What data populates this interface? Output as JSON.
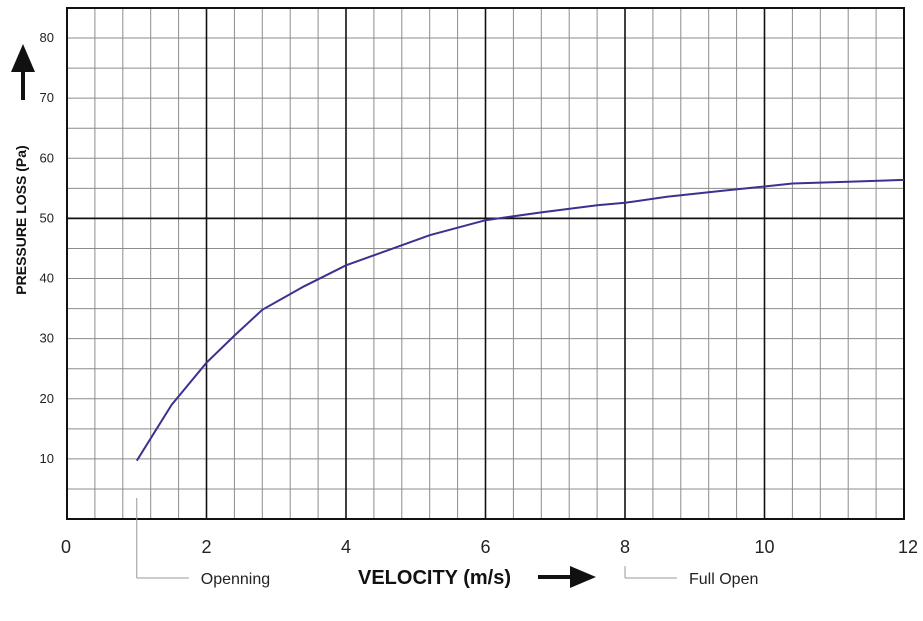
{
  "chart_data": {
    "type": "line",
    "xlabel": "VELOCITY (m/s)",
    "ylabel": "PRESSURE LOSS  (Pa)",
    "xlim": [
      0,
      12
    ],
    "ylim": [
      0,
      85
    ],
    "x_ticks": [
      0,
      2,
      4,
      6,
      8,
      10,
      12
    ],
    "y_ticks": [
      10,
      20,
      30,
      40,
      50,
      60,
      70,
      80
    ],
    "grid": true,
    "series": [
      {
        "color": "#3a3290",
        "points": [
          [
            1.0,
            9.7
          ],
          [
            1.5,
            19.0
          ],
          [
            2.0,
            26.0
          ],
          [
            2.4,
            30.5
          ],
          [
            2.8,
            34.8
          ],
          [
            3.4,
            38.7
          ],
          [
            4.0,
            42.2
          ],
          [
            4.6,
            44.7
          ],
          [
            5.2,
            47.2
          ],
          [
            6.0,
            49.7
          ],
          [
            6.8,
            51.0
          ],
          [
            7.6,
            52.2
          ],
          [
            8.0,
            52.6
          ],
          [
            8.6,
            53.6
          ],
          [
            9.4,
            54.6
          ],
          [
            10.0,
            55.3
          ],
          [
            10.4,
            55.8
          ],
          [
            11.2,
            56.1
          ],
          [
            12.0,
            56.4
          ]
        ]
      }
    ],
    "annotations": [
      {
        "text": "Openning",
        "x": 1.0
      },
      {
        "text": "Full Open",
        "x": 8.0
      }
    ]
  }
}
